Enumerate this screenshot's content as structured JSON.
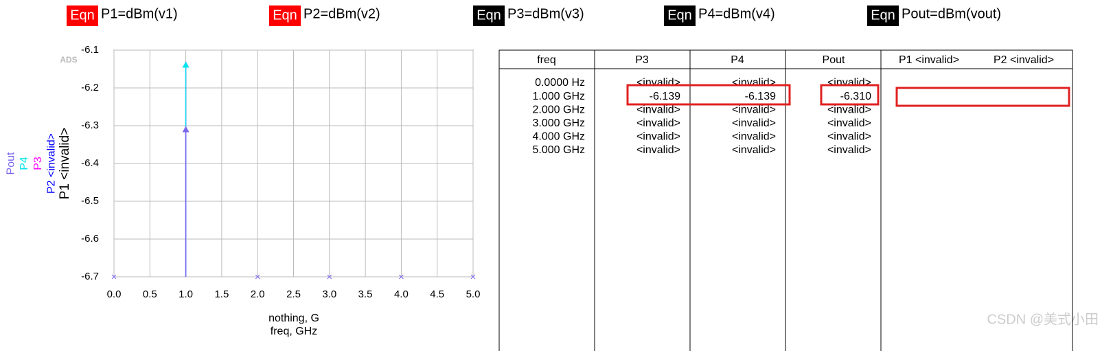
{
  "equations": [
    {
      "tag": "Eqn",
      "tag_color": "#ff0000",
      "text": "P1=dBm(v1)"
    },
    {
      "tag": "Eqn",
      "tag_color": "#ff0000",
      "text": "P2=dBm(v2)"
    },
    {
      "tag": "Eqn",
      "tag_color": "#000000",
      "text": "P3=dBm(v3)"
    },
    {
      "tag": "Eqn",
      "tag_color": "#000000",
      "text": "P4=dBm(v4)"
    },
    {
      "tag": "Eqn",
      "tag_color": "#000000",
      "text": "Pout=dBm(vout)"
    }
  ],
  "logo": "ADS",
  "chart_data": {
    "type": "stem",
    "x": [
      0,
      1,
      2,
      3,
      4,
      5
    ],
    "xlim": [
      0,
      5
    ],
    "xticks": [
      {
        "value": 0,
        "label": "0.0"
      },
      {
        "value": 0.5,
        "label": "0.5"
      },
      {
        "value": 1,
        "label": "1.0"
      },
      {
        "value": 1.5,
        "label": "1.5"
      },
      {
        "value": 2,
        "label": "2.0"
      },
      {
        "value": 2.5,
        "label": "2.5"
      },
      {
        "value": 3,
        "label": "3.0"
      },
      {
        "value": 3.5,
        "label": "3.5"
      },
      {
        "value": 4,
        "label": "4.0"
      },
      {
        "value": 4.5,
        "label": "4.5"
      },
      {
        "value": 5,
        "label": "5.0"
      }
    ],
    "ylim": [
      -6.7,
      -6.1
    ],
    "yticks": [
      -6.1,
      -6.2,
      -6.3,
      -6.4,
      -6.5,
      -6.6,
      -6.7
    ],
    "grid": true,
    "x_label": [
      "nothing, G",
      "freq, GHz"
    ],
    "series": [
      {
        "name": "P1 <invalid>",
        "color": "#000000",
        "values": [
          null,
          null,
          null,
          null,
          null,
          null
        ]
      },
      {
        "name": "P2 <invalid>",
        "color": "#0000ff",
        "values": [
          null,
          null,
          null,
          null,
          null,
          null
        ]
      },
      {
        "name": "P3",
        "color": "#ff00ff",
        "values": [
          null,
          -6.139,
          null,
          null,
          null,
          null
        ]
      },
      {
        "name": "P4",
        "color": "#00e5ee",
        "values": [
          null,
          -6.139,
          null,
          null,
          null,
          null
        ]
      },
      {
        "name": "Pout",
        "color": "#7b68ee",
        "values": [
          null,
          -6.31,
          null,
          null,
          null,
          null
        ]
      }
    ]
  },
  "table": {
    "columns": [
      "freq",
      "P3",
      "P4",
      "Pout",
      "P1 <invalid>",
      "P2 <invalid>"
    ],
    "rows": [
      [
        "0.0000 Hz",
        "<invalid>",
        "<invalid>",
        "<invalid>"
      ],
      [
        "1.000 GHz",
        "-6.139",
        "-6.139",
        "-6.310"
      ],
      [
        "2.000 GHz",
        "<invalid>",
        "<invalid>",
        "<invalid>"
      ],
      [
        "3.000 GHz",
        "<invalid>",
        "<invalid>",
        "<invalid>"
      ],
      [
        "4.000 GHz",
        "<invalid>",
        "<invalid>",
        "<invalid>"
      ],
      [
        "5.000 GHz",
        "<invalid>",
        "<invalid>",
        "<invalid>"
      ]
    ]
  },
  "watermark": "CSDN @美式小田"
}
